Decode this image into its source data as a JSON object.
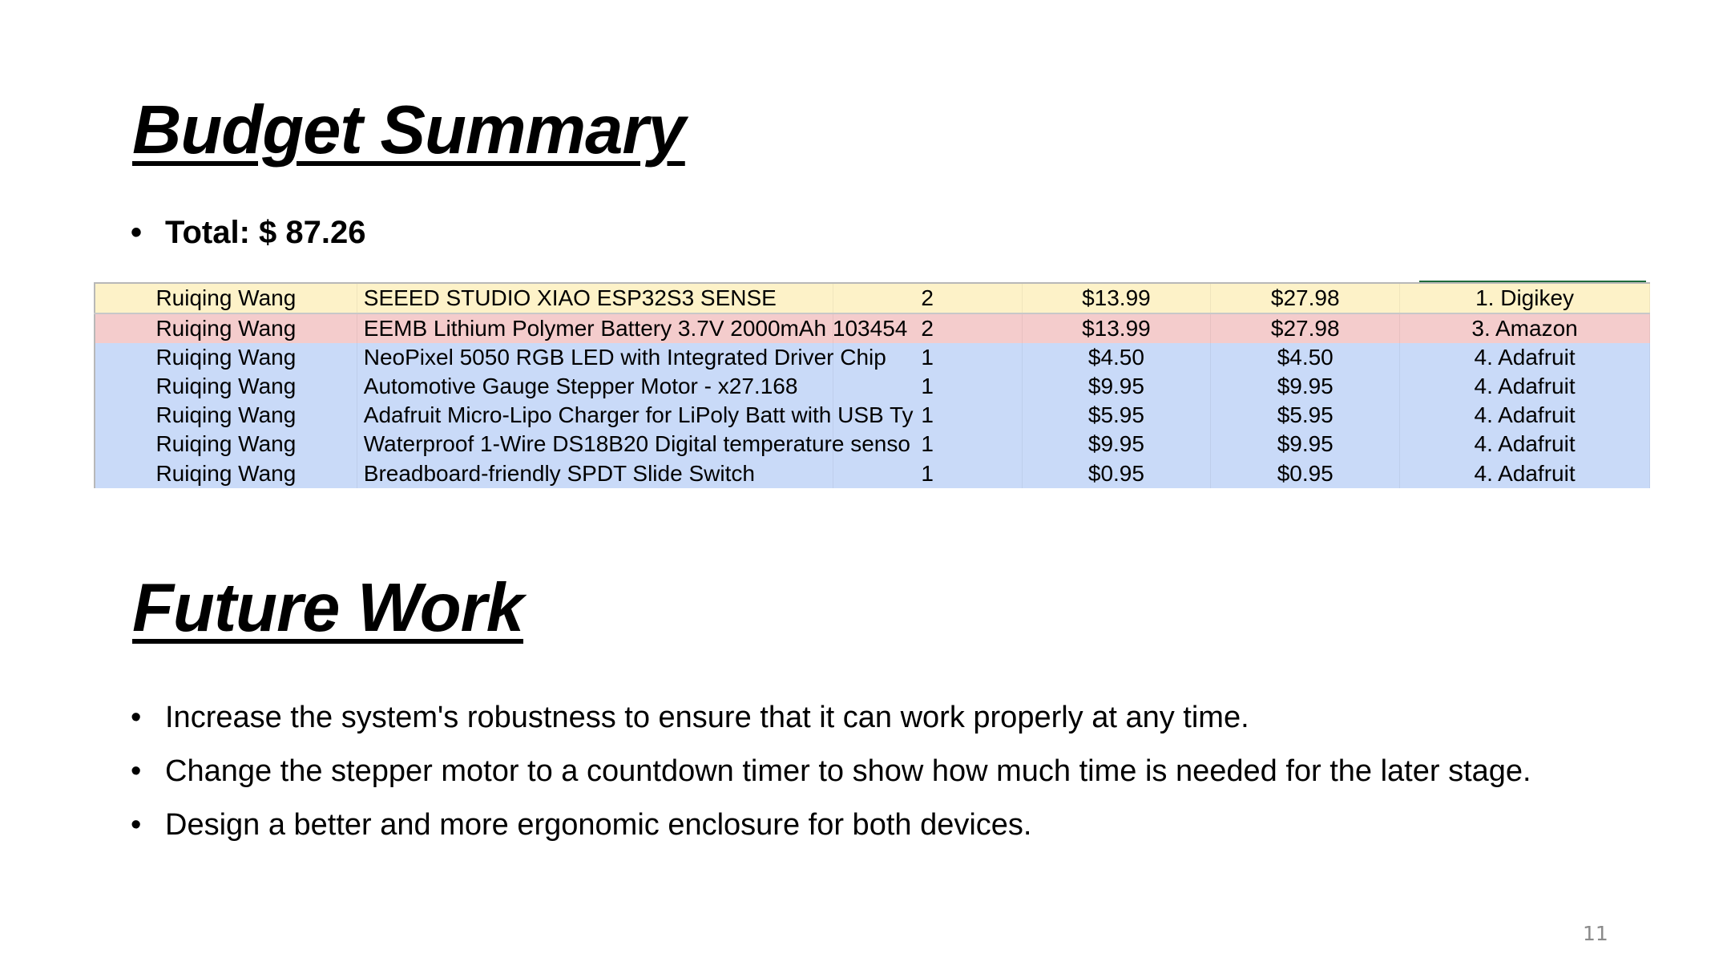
{
  "budget": {
    "title": "Budget Summary",
    "total_label": "Total: $ 87.26",
    "rows": [
      {
        "name": "Ruiqing Wang",
        "item": "SEEED STUDIO XIAO ESP32S3 SENSE",
        "qty": "2",
        "unit_price": "$13.99",
        "total": "$27.98",
        "vendor": "1. Digikey",
        "color": "#fdf2c8"
      },
      {
        "name": "Ruiqing Wang",
        "item": "EEMB Lithium Polymer Battery 3.7V 2000mAh 103454",
        "qty": "2",
        "unit_price": "$13.99",
        "total": "$27.98",
        "vendor": "3. Amazon",
        "color": "#f4cccc"
      },
      {
        "name": "Ruiqing Wang",
        "item": "NeoPixel 5050 RGB LED with Integrated Driver Chip",
        "qty": "1",
        "unit_price": "$4.50",
        "total": "$4.50",
        "vendor": "4. Adafruit",
        "color": "#c9daf8"
      },
      {
        "name": "Ruiqing Wang",
        "item": "Automotive Gauge Stepper Motor - x27.168",
        "qty": "1",
        "unit_price": "$9.95",
        "total": "$9.95",
        "vendor": "4. Adafruit",
        "color": "#c9daf8"
      },
      {
        "name": "Ruiqing Wang",
        "item": "Adafruit Micro-Lipo Charger for LiPoly Batt with USB Ty",
        "qty": "1",
        "unit_price": "$5.95",
        "total": "$5.95",
        "vendor": "4. Adafruit",
        "color": "#c9daf8"
      },
      {
        "name": "Ruiqing Wang",
        "item": "Waterproof 1-Wire DS18B20 Digital temperature senso",
        "qty": "1",
        "unit_price": "$9.95",
        "total": "$9.95",
        "vendor": "4. Adafruit",
        "color": "#c9daf8"
      },
      {
        "name": "Ruiqing Wang",
        "item": "Breadboard-friendly SPDT Slide Switch",
        "qty": "1",
        "unit_price": "$0.95",
        "total": "$0.95",
        "vendor": "4. Adafruit",
        "color": "#c9daf8"
      }
    ]
  },
  "future": {
    "title": "Future Work",
    "items": [
      "Increase the system's robustness to ensure that it can work properly at any time.",
      "Change the stepper motor to a countdown timer to show how much time is needed for the later stage.",
      "Design a better and more ergonomic enclosure for both devices."
    ]
  },
  "page_number": "11"
}
